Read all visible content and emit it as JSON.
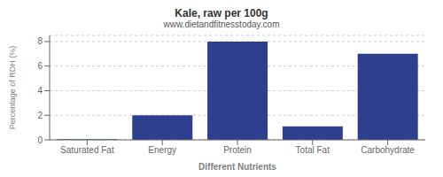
{
  "chart_data": {
    "type": "bar",
    "title": "Kale, raw per 100g",
    "subtitle": "www.dietandfitnesstoday.com",
    "xlabel": "Different Nutrients",
    "ylabel": "Percentage of RDH (%)",
    "categories": [
      "Saturated Fat",
      "Energy",
      "Protein",
      "Total Fat",
      "Carbohydrate"
    ],
    "values": [
      0.05,
      2.0,
      8.0,
      1.1,
      7.0
    ],
    "color": "#2e3f8f",
    "ylim": [
      0,
      8.5
    ],
    "yticks": [
      0,
      2,
      4,
      6,
      8
    ],
    "grid": true
  }
}
